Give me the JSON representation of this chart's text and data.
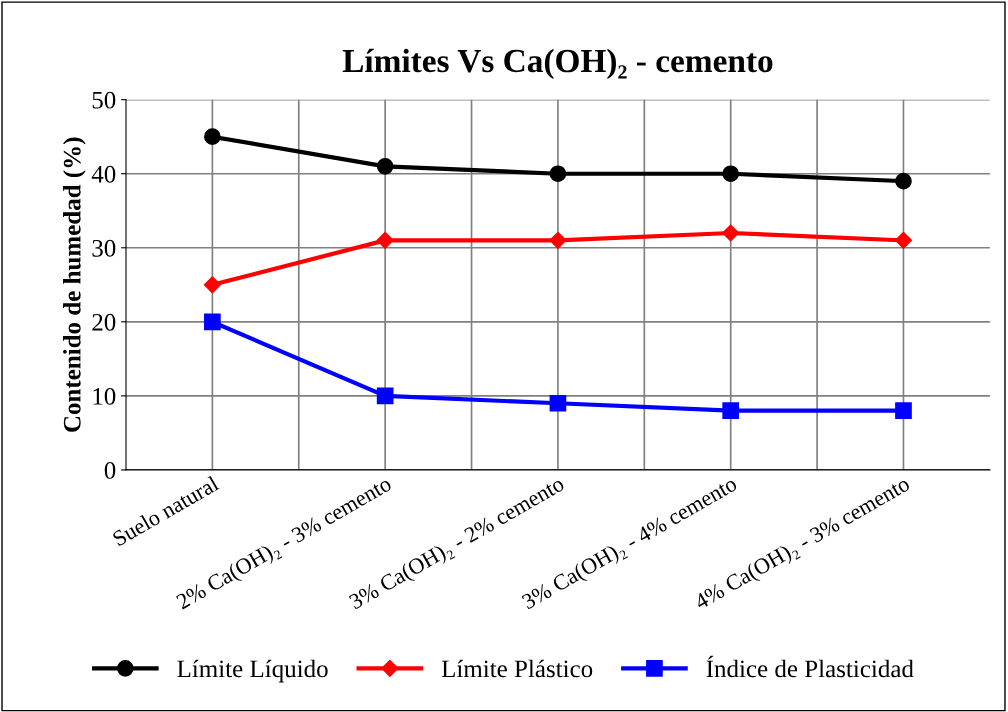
{
  "chart_data": {
    "type": "line",
    "title": "Límites Vs Ca(OH)₂ - cemento",
    "ylabel": "Contenido de humedad (%)",
    "categories": [
      "Suelo natural",
      "2% Ca(OH)₂ - 3% cemento",
      "3% Ca(OH)₂ - 2% cemento",
      "3% Ca(OH)₂ - 4% cemento",
      "4% Ca(OH)₂ - 3% cemento"
    ],
    "series": [
      {
        "name": "Límite Líquido",
        "color": "#000000",
        "marker": "circle",
        "values": [
          45,
          41,
          40,
          40,
          39
        ]
      },
      {
        "name": "Límite Plástico",
        "color": "#ff0000",
        "marker": "diamond",
        "values": [
          25,
          31,
          31,
          32,
          31
        ]
      },
      {
        "name": "Índice de Plasticidad",
        "color": "#0000ff",
        "marker": "square",
        "values": [
          20,
          10,
          9,
          8,
          8
        ]
      }
    ],
    "ylim": [
      0,
      50
    ],
    "yticks": [
      0,
      10,
      20,
      30,
      40,
      50
    ],
    "grid": true,
    "legend": "bottom",
    "line_style": "solid"
  }
}
